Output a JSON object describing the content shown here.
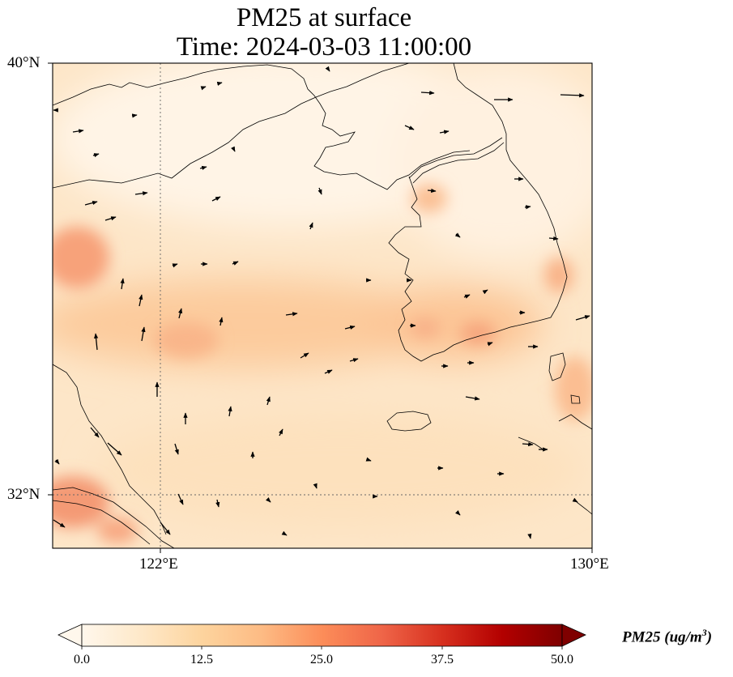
{
  "map": {
    "title_line1": "PM25 at surface",
    "title_line2": "Time: 2024-03-03 11:00:00",
    "lat_range": [
      31,
      40
    ],
    "lon_range": [
      120,
      130
    ],
    "lat_ticks": [
      {
        "value": 40,
        "label": "40°N"
      },
      {
        "value": 32,
        "label": "32°N"
      }
    ],
    "lon_ticks": [
      {
        "value": 122,
        "label": "122°E"
      },
      {
        "value": 130,
        "label": "130°E"
      }
    ],
    "gridlines": {
      "lon": [
        122
      ],
      "lat": [
        32
      ],
      "style": "dotted"
    },
    "colormap": "OrRd",
    "features": [
      "coastlines",
      "wind-vectors",
      "pm25-field"
    ]
  },
  "colorbar": {
    "title": "PM25 (ug/m",
    "title_sup": "3",
    "title_close": ")",
    "min": 0.0,
    "max": 50.0,
    "extend": "both",
    "ticks": [
      "0.0",
      "12.5",
      "25.0",
      "37.5",
      "50.0"
    ],
    "stops": [
      "#fff7ec",
      "#fee8c8",
      "#fdd49e",
      "#fdbb84",
      "#fc8d59",
      "#ef6548",
      "#d7301f",
      "#b30000",
      "#7f0000"
    ]
  }
}
